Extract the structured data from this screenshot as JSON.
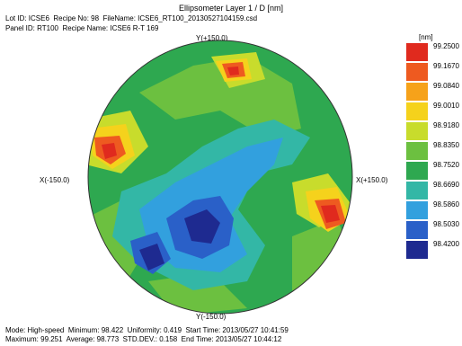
{
  "header": {
    "title": "Ellipsometer Layer 1 / D [nm]",
    "line1": "Lot ID: ICSE6  Recipe No: 98  FileName: ICSE6_RT100_20130527104159.csd",
    "line2": "Panel ID: RT100  Recipe Name: ICSE6 R-T 169"
  },
  "axes": {
    "top": "Y(+150.0)",
    "bottom": "Y(-150.0)",
    "left": "X(-150.0)",
    "right": "X(+150.0)"
  },
  "legend": {
    "unit": "[nm]",
    "items": [
      {
        "label": "99.2500",
        "color": "#e02a1e"
      },
      {
        "label": "99.1670",
        "color": "#ee5a20"
      },
      {
        "label": "99.0840",
        "color": "#f6a21a"
      },
      {
        "label": "99.0010",
        "color": "#f5d21c"
      },
      {
        "label": "98.9180",
        "color": "#c8dc2c"
      },
      {
        "label": "98.8350",
        "color": "#6cc040"
      },
      {
        "label": "98.7520",
        "color": "#2ea850"
      },
      {
        "label": "98.6690",
        "color": "#33b7a6"
      },
      {
        "label": "98.5860",
        "color": "#32a0de"
      },
      {
        "label": "98.5030",
        "color": "#2a60c8"
      },
      {
        "label": "98.4200",
        "color": "#1e2a90"
      }
    ]
  },
  "footer": {
    "line1": "Mode: High-speed  Minimum: 98.422  Uniformity: 0.419  Start Time: 2013/05/27 10:41:59",
    "line2": "Maximum: 99.251  Average: 98.773  STD.DEV.: 0.158  End Time: 2013/05/27 10:44:12"
  }
}
